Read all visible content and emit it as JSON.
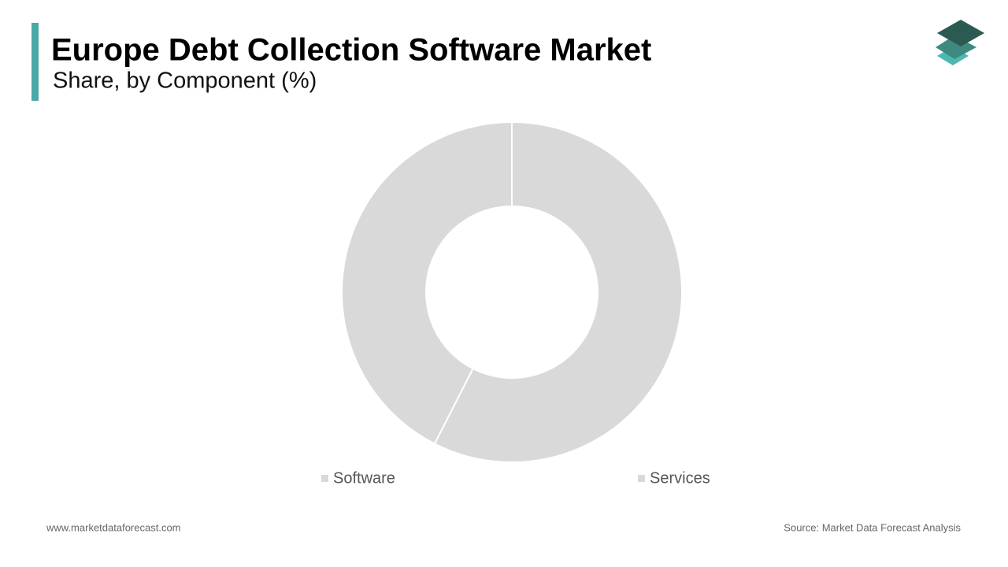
{
  "chart_data": {
    "type": "donut",
    "title": "Europe Debt Collection Software Market",
    "subtitle": "Share, by Component (%)",
    "categories": [
      "Software",
      "Services"
    ],
    "values": [
      57.5,
      42.5
    ],
    "colors": [
      "#d9d9d9",
      "#d9d9d9"
    ]
  },
  "footer": {
    "website": "www.marketdataforecast.com",
    "source": "Source: Market Data Forecast Analysis"
  }
}
